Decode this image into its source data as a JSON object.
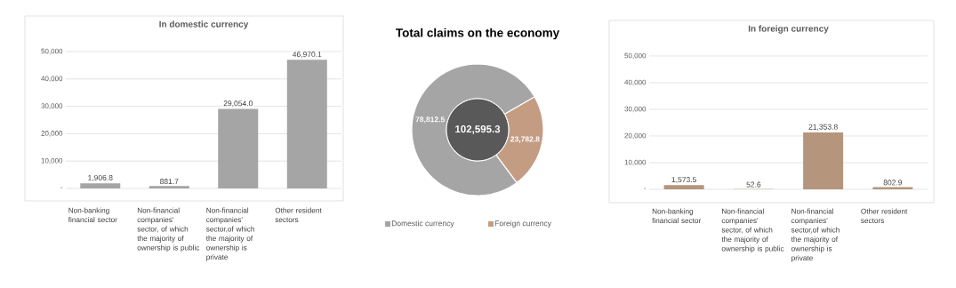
{
  "chart_data": [
    {
      "type": "bar",
      "title": "In domestic currency",
      "categories": [
        "Non-banking financial sector",
        "Non-financial companies' sector, of which the majority of ownership is public",
        "Non-financial companies' sector,of which the majority of ownership is private",
        "Other resident sectors"
      ],
      "values": [
        1906.8,
        881.7,
        29054.0,
        46970.1
      ],
      "color": "#a5a5a5",
      "value_labels": [
        "1,906.8",
        "881.7",
        "29,054.0",
        "46,970.1"
      ],
      "ylim": [
        0,
        50000
      ],
      "yticks": [
        {
          "value": 0,
          "label": "-"
        },
        {
          "value": 10000,
          "label": "10,000"
        },
        {
          "value": 20000,
          "label": "20,000"
        },
        {
          "value": 30000,
          "label": "30,000"
        },
        {
          "value": 40000,
          "label": "40,000"
        },
        {
          "value": 50000,
          "label": "50,000"
        }
      ],
      "grid": "y"
    },
    {
      "type": "donut",
      "title": "Total claims on the economy",
      "categories": [
        "Domestic currency",
        "Foreign currency"
      ],
      "values": [
        78812.5,
        23782.8
      ],
      "colors": [
        "#a5a5a5",
        "#c49c82"
      ],
      "value_labels": [
        "78,812.5",
        "23,782.8"
      ],
      "annotations": [
        "102,595.3"
      ],
      "legend": "bottom"
    },
    {
      "type": "bar",
      "title": "In foreign currency",
      "categories": [
        "Non-banking financial sector",
        "Non-financial companies' sector, of which the majority of ownership is public",
        "Non-financial companies' sector,of which the majority of ownership is private",
        "Other resident sectors"
      ],
      "values": [
        1573.5,
        52.6,
        21353.8,
        802.9
      ],
      "color": "#b5957b",
      "value_labels": [
        "1,573.5",
        "52.6",
        "21,353.8",
        "802.9"
      ],
      "ylim": [
        0,
        50000
      ],
      "yticks": [
        {
          "value": 0,
          "label": "-"
        },
        {
          "value": 10000,
          "label": "10,000"
        },
        {
          "value": 20000,
          "label": "20,000"
        },
        {
          "value": 30000,
          "label": "30,000"
        },
        {
          "value": 40000,
          "label": "40,000"
        },
        {
          "value": 50000,
          "label": "50,000"
        }
      ],
      "grid": "y"
    }
  ]
}
